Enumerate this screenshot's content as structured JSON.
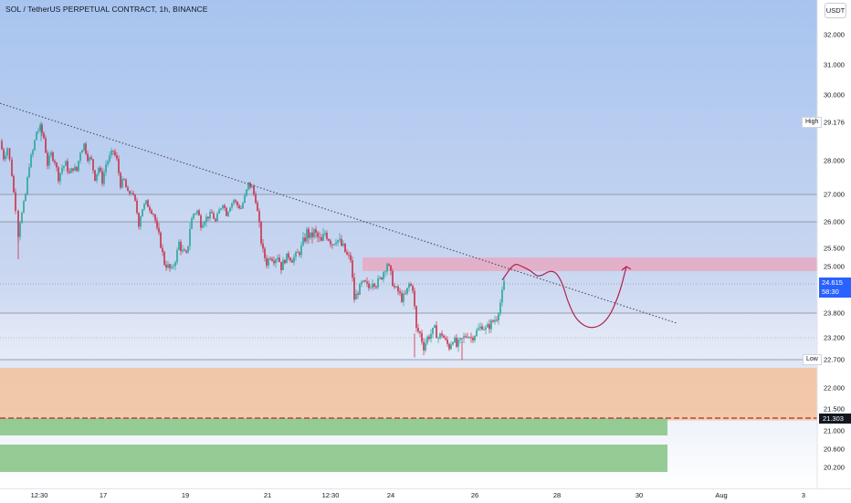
{
  "header": {
    "title": "SOL / TetherUS PERPETUAL CONTRACT, 1h, BINANCE",
    "currency": "USDT"
  },
  "price_axis": {
    "ticks": [
      "32.000",
      "31.000",
      "30.000",
      "28.000",
      "27.000",
      "26.000",
      "25.500",
      "25.000",
      "23.800",
      "23.200",
      "22.000",
      "21.500",
      "21.000",
      "20.600",
      "20.200"
    ],
    "high_label": "High",
    "high_value": "29.176",
    "low_label": "Low",
    "low_value": "22.700",
    "current_price": "24.615",
    "countdown": "58:30",
    "marker_value": "21.303"
  },
  "time_axis": {
    "ticks": [
      "12:30",
      "17",
      "19",
      "21",
      "12:30",
      "24",
      "26",
      "28",
      "30",
      "Aug",
      "3"
    ]
  },
  "colors": {
    "background_top": "#a7c4ef",
    "background_bottom": "#ffffff",
    "resistance_zone": "#e8a9c3",
    "orange_zone": "#f2c29a",
    "green_zone": "#8fc98f",
    "candle_up": "#26a69a",
    "candle_down": "#c8304a",
    "current_price_tag": "#2962ff",
    "marker_tag": "#131722",
    "projection": "#b2224a",
    "trendline": "#4a4a5a"
  },
  "chart_data": {
    "type": "candlestick",
    "symbol": "SOL / TetherUS PERPETUAL CONTRACT",
    "interval": "1h",
    "exchange": "BINANCE",
    "ylim": [
      19.9,
      32.7
    ],
    "high": 29.176,
    "low": 22.7,
    "last_price": 24.615,
    "price_path": [
      [
        0,
        28.6
      ],
      [
        4,
        28.1
      ],
      [
        8,
        28.4
      ],
      [
        13,
        27.6
      ],
      [
        17,
        26.5
      ],
      [
        20,
        25.8
      ],
      [
        24,
        26.3
      ],
      [
        28,
        27.0
      ],
      [
        32,
        27.9
      ],
      [
        36,
        28.3
      ],
      [
        40,
        28.9
      ],
      [
        44,
        29.0
      ],
      [
        48,
        28.7
      ],
      [
        52,
        27.9
      ],
      [
        56,
        28.2
      ],
      [
        60,
        28.0
      ],
      [
        64,
        27.5
      ],
      [
        68,
        27.8
      ],
      [
        72,
        27.9
      ],
      [
        76,
        27.6
      ],
      [
        80,
        27.8
      ],
      [
        84,
        27.7
      ],
      [
        88,
        28.3
      ],
      [
        92,
        28.5
      ],
      [
        96,
        28.1
      ],
      [
        100,
        28.0
      ],
      [
        104,
        27.5
      ],
      [
        108,
        27.8
      ],
      [
        112,
        27.4
      ],
      [
        116,
        27.9
      ],
      [
        120,
        28.1
      ],
      [
        124,
        28.3
      ],
      [
        128,
        28.0
      ],
      [
        132,
        27.3
      ],
      [
        136,
        27.4
      ],
      [
        140,
        27.0
      ],
      [
        144,
        27.1
      ],
      [
        148,
        26.7
      ],
      [
        152,
        26.0
      ],
      [
        156,
        26.5
      ],
      [
        160,
        26.7
      ],
      [
        164,
        26.5
      ],
      [
        168,
        26.3
      ],
      [
        172,
        25.8
      ],
      [
        176,
        25.6
      ],
      [
        180,
        25.1
      ],
      [
        184,
        25.0
      ],
      [
        188,
        24.9
      ],
      [
        192,
        25.2
      ],
      [
        196,
        25.6
      ],
      [
        200,
        25.4
      ],
      [
        204,
        25.3
      ],
      [
        208,
        25.9
      ],
      [
        212,
        26.3
      ],
      [
        216,
        26.4
      ],
      [
        220,
        26.0
      ],
      [
        224,
        26.1
      ],
      [
        228,
        26.2
      ],
      [
        232,
        26.3
      ],
      [
        236,
        26.0
      ],
      [
        240,
        26.4
      ],
      [
        244,
        26.7
      ],
      [
        248,
        26.3
      ],
      [
        252,
        26.6
      ],
      [
        256,
        26.8
      ],
      [
        260,
        26.6
      ],
      [
        264,
        26.5
      ],
      [
        268,
        26.9
      ],
      [
        272,
        27.3
      ],
      [
        276,
        27.2
      ],
      [
        280,
        26.8
      ],
      [
        284,
        25.9
      ],
      [
        288,
        25.4
      ],
      [
        292,
        25.1
      ],
      [
        296,
        25.3
      ],
      [
        300,
        25.2
      ],
      [
        304,
        25.3
      ],
      [
        308,
        25.0
      ],
      [
        312,
        25.2
      ],
      [
        316,
        25.3
      ],
      [
        320,
        25.2
      ],
      [
        324,
        25.3
      ],
      [
        328,
        25.4
      ],
      [
        332,
        25.6
      ],
      [
        336,
        25.8
      ],
      [
        340,
        25.7
      ],
      [
        344,
        25.8
      ],
      [
        348,
        25.7
      ],
      [
        352,
        25.6
      ],
      [
        356,
        25.8
      ],
      [
        360,
        25.7
      ],
      [
        364,
        25.6
      ],
      [
        368,
        25.7
      ],
      [
        372,
        25.6
      ],
      [
        376,
        25.5
      ],
      [
        380,
        25.3
      ],
      [
        384,
        25.2
      ],
      [
        388,
        24.2
      ],
      [
        392,
        24.4
      ],
      [
        396,
        24.6
      ],
      [
        400,
        24.6
      ],
      [
        404,
        24.5
      ],
      [
        408,
        24.7
      ],
      [
        412,
        24.6
      ],
      [
        416,
        24.7
      ],
      [
        420,
        24.9
      ],
      [
        424,
        25.1
      ],
      [
        428,
        24.8
      ],
      [
        432,
        24.5
      ],
      [
        436,
        24.4
      ],
      [
        440,
        24.2
      ],
      [
        444,
        24.3
      ],
      [
        448,
        24.6
      ],
      [
        452,
        24.5
      ],
      [
        456,
        23.4
      ],
      [
        460,
        23.3
      ],
      [
        464,
        23.0
      ],
      [
        468,
        23.2
      ],
      [
        472,
        23.3
      ],
      [
        476,
        23.4
      ],
      [
        480,
        23.2
      ],
      [
        484,
        23.3
      ],
      [
        488,
        23.1
      ],
      [
        492,
        23.0
      ],
      [
        496,
        23.2
      ],
      [
        500,
        23.0
      ],
      [
        504,
        23.1
      ],
      [
        508,
        23.2
      ],
      [
        512,
        23.3
      ],
      [
        516,
        23.2
      ],
      [
        520,
        23.3
      ],
      [
        524,
        23.4
      ],
      [
        528,
        23.5
      ],
      [
        532,
        23.4
      ],
      [
        536,
        23.5
      ],
      [
        540,
        23.6
      ],
      [
        544,
        23.7
      ],
      [
        548,
        24.1
      ],
      [
        552,
        24.615
      ]
    ],
    "trendline": [
      [
        0,
        29.75
      ],
      [
        742,
        23.55
      ]
    ],
    "levels": [
      27.0,
      26.0,
      24.615,
      23.8,
      23.2,
      22.7,
      21.303
    ],
    "zones": [
      {
        "name": "resistance",
        "from": 24.9,
        "to": 25.25
      },
      {
        "name": "orange",
        "from": 21.25,
        "to": 22.5
      },
      {
        "name": "green-upper",
        "from": 20.9,
        "to": 21.3
      },
      {
        "name": "green-lower",
        "from": 20.1,
        "to": 20.7
      }
    ],
    "projection_path": [
      [
        550,
        24.7
      ],
      [
        563,
        25.1
      ],
      [
        572,
        25.0
      ],
      [
        582,
        24.9
      ],
      [
        590,
        24.75
      ],
      [
        605,
        24.95
      ],
      [
        615,
        24.7
      ],
      [
        622,
        24.1
      ],
      [
        632,
        23.6
      ],
      [
        648,
        23.4
      ],
      [
        665,
        23.6
      ],
      [
        678,
        24.3
      ],
      [
        686,
        25.0
      ]
    ]
  }
}
